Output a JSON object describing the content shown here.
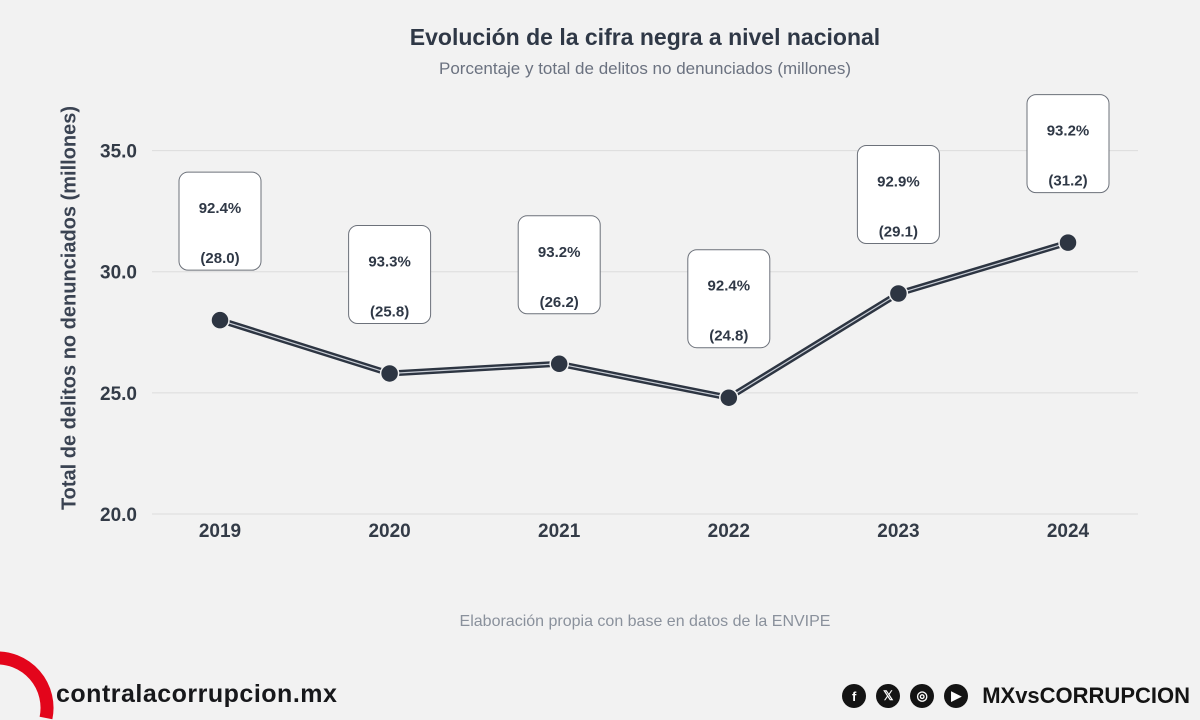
{
  "chart_data": {
    "type": "line",
    "title": "Evolución de la cifra negra a nivel nacional",
    "subtitle": "Porcentaje y total de delitos no denunciados (millones)",
    "xlabel": "",
    "ylabel": "Total de delitos no denunciados (millones)",
    "categories": [
      "2019",
      "2020",
      "2021",
      "2022",
      "2023",
      "2024"
    ],
    "values": [
      28.0,
      25.8,
      26.2,
      24.8,
      29.1,
      31.2
    ],
    "ylim": [
      20,
      37.5
    ],
    "yticks": [
      "20.0",
      "25.0",
      "30.0",
      "35.0"
    ],
    "grid": true,
    "annotations": [
      {
        "pct": "92.4%",
        "total": "(28.0)"
      },
      {
        "pct": "93.3%",
        "total": "(25.8)"
      },
      {
        "pct": "93.2%",
        "total": "(26.2)"
      },
      {
        "pct": "92.4%",
        "total": "(24.8)"
      },
      {
        "pct": "92.9%",
        "total": "(29.1)"
      },
      {
        "pct": "93.2%",
        "total": "(31.2)"
      }
    ],
    "colors": {
      "line": "#2d3542",
      "marker": "#2d3542",
      "grid": "#dcdcdc"
    }
  },
  "source_note": "Elaboración propia con base en datos de la ENVIPE",
  "footer": {
    "site": "contralacorrupcion.mx",
    "handle": "MXvsCORRUPCION",
    "brand_color": "#e3051b",
    "social_icons": [
      "facebook-icon",
      "x-icon",
      "instagram-icon",
      "youtube-icon"
    ]
  }
}
